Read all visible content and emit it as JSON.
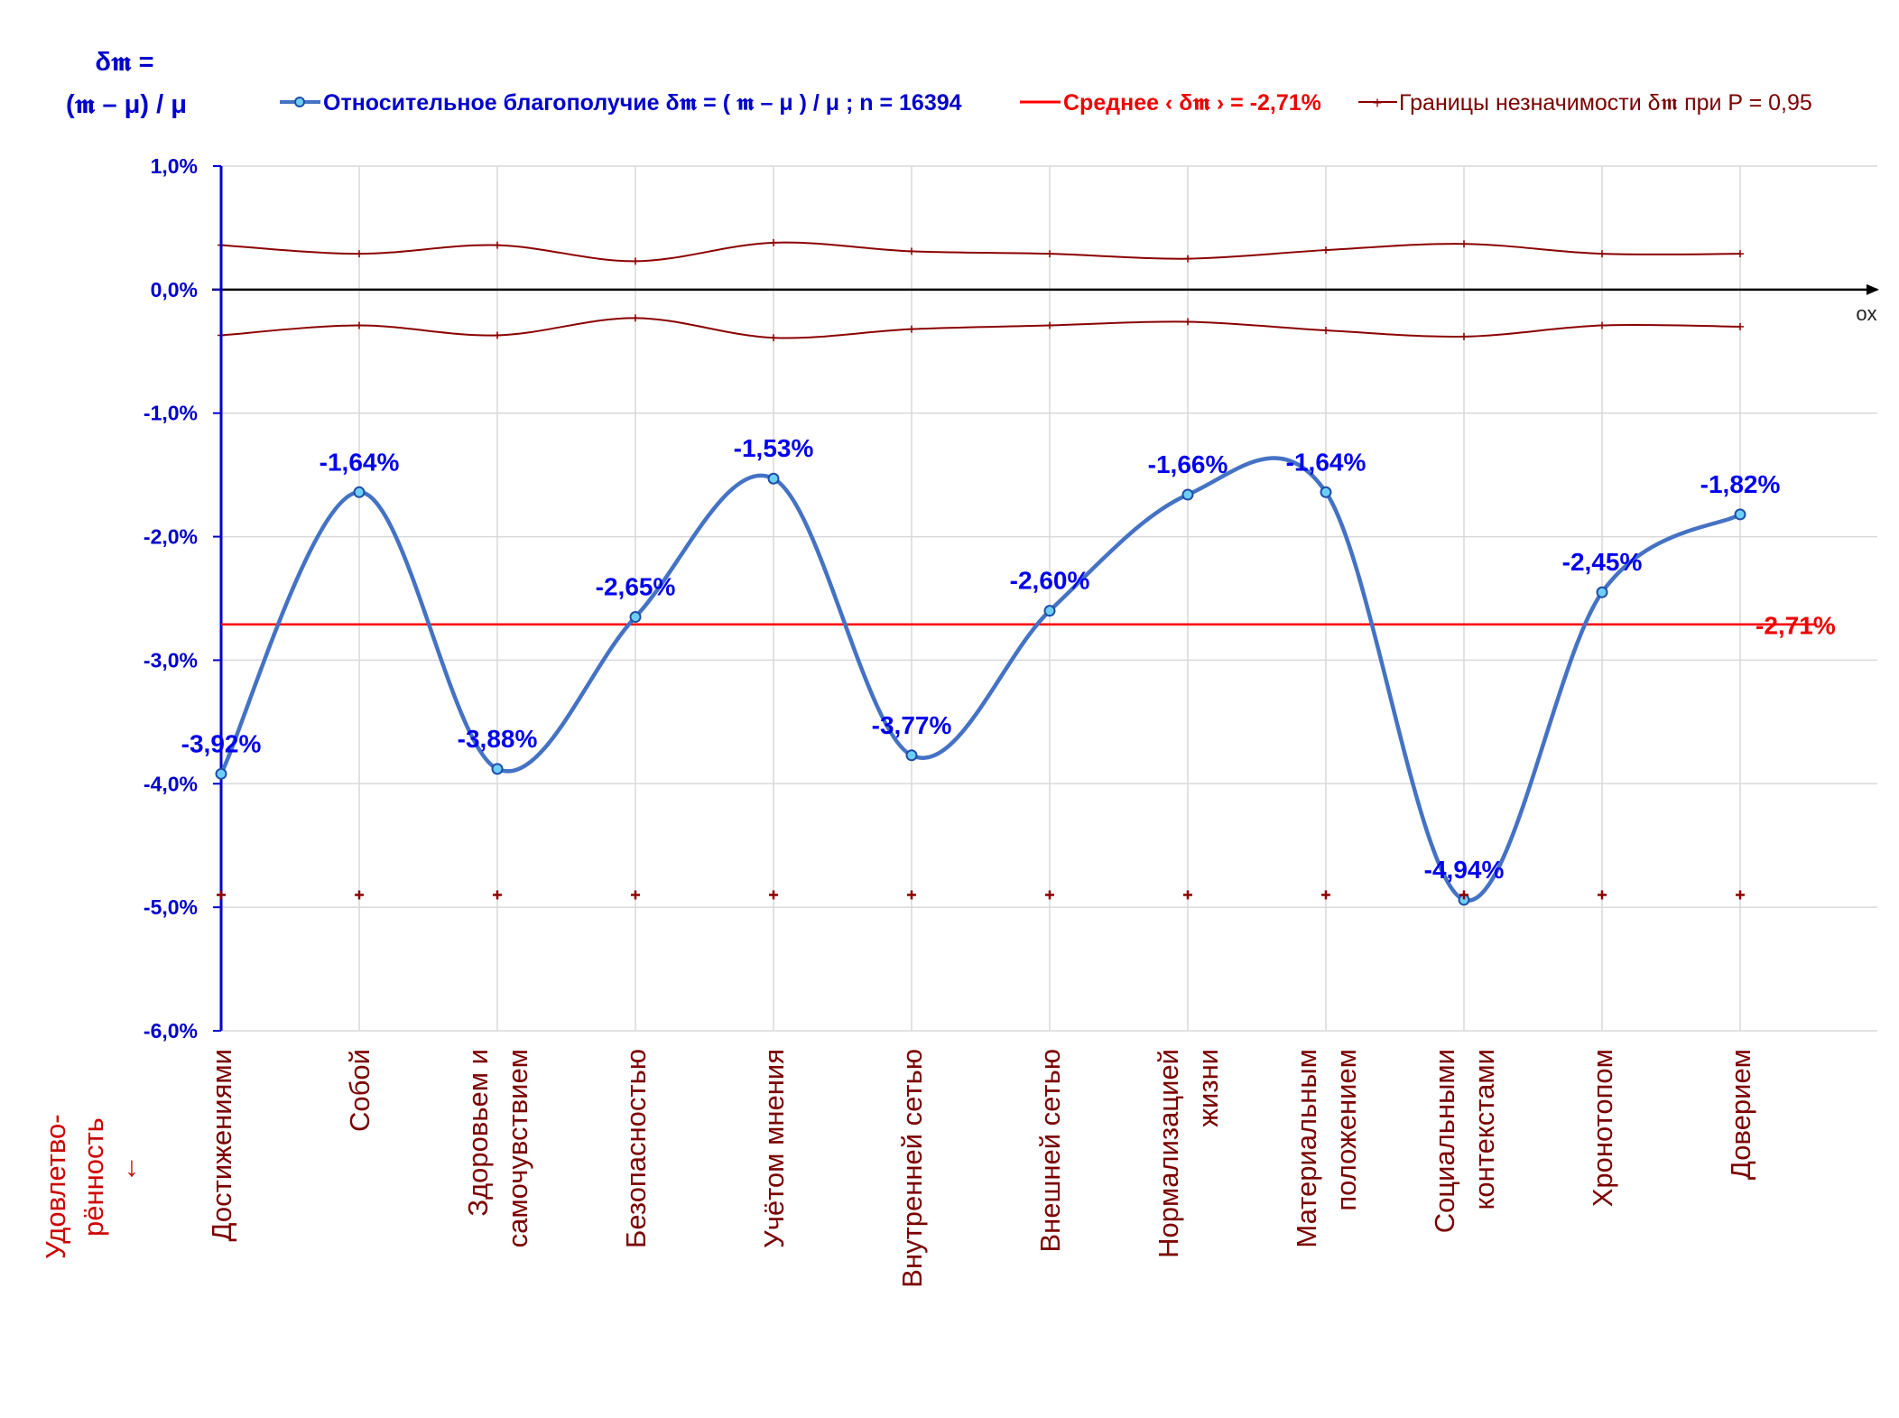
{
  "chart_data": {
    "type": "line",
    "y_title_line1": "δ𝖒 =",
    "y_title_line2": "(𝖒 – μ) / μ",
    "x_axis_name": "ox",
    "corner_label_line1": "Удовлетво-",
    "corner_label_line2": "рённость",
    "corner_label_line3": "↓",
    "legend": {
      "series": "Относительное благополучие δ𝖒 = ( 𝖒 – μ ) / μ ; n = 16394",
      "mean": "Среднее ‹ δ𝖒 › = -2,71%",
      "bounds": "Границы незначимости δ𝖒 при P = 0,95"
    },
    "ylim": [
      -6.0,
      1.0
    ],
    "y_ticks": [
      1.0,
      0.0,
      -1.0,
      -2.0,
      -3.0,
      -4.0,
      -5.0,
      -6.0
    ],
    "y_tick_labels": [
      "1,0%",
      "0,0%",
      "-1,0%",
      "-2,0%",
      "-3,0%",
      "-4,0%",
      "-5,0%",
      "-6,0%"
    ],
    "categories": [
      [
        "Достижениями"
      ],
      [
        "Собой"
      ],
      [
        "Здоровьем и",
        "самочувствием"
      ],
      [
        "Безопасностью"
      ],
      [
        "Учётом мнения"
      ],
      [
        "Внутренней сетью"
      ],
      [
        "Внешней сетью"
      ],
      [
        "Нормализацией",
        "жизни"
      ],
      [
        "Материальным",
        "положением"
      ],
      [
        "Социальными",
        "контекстами"
      ],
      [
        "Хронотопом"
      ],
      [
        "Доверием"
      ]
    ],
    "series": [
      {
        "name": "Относительное благополучие δ𝖒 = ( 𝖒 – μ ) / μ ; n = 16394",
        "values": [
          -3.92,
          -1.64,
          -3.88,
          -2.65,
          -1.53,
          -3.77,
          -2.6,
          -1.66,
          -1.64,
          -4.94,
          -2.45,
          -1.82
        ],
        "labels": [
          "-3,92%",
          "-1,64%",
          "-3,88%",
          "-2,65%",
          "-1,53%",
          "-3,77%",
          "-2,60%",
          "-1,66%",
          "-1,64%",
          "-4,94%",
          "-2,45%",
          "-1,82%"
        ],
        "color": "#4472c4"
      }
    ],
    "mean": {
      "value": -2.71,
      "label": "-2,71%",
      "color": "#ff0000"
    },
    "bounds_upper": [
      0.36,
      0.29,
      0.36,
      0.23,
      0.38,
      0.31,
      0.29,
      0.25,
      0.32,
      0.37,
      0.29,
      0.29
    ],
    "bounds_lower": [
      -0.37,
      -0.29,
      -0.37,
      -0.23,
      -0.39,
      -0.32,
      -0.29,
      -0.26,
      -0.33,
      -0.38,
      -0.29,
      -0.3
    ],
    "bounds_color": "#8b0000",
    "marker_row_value": -4.9,
    "grid": true
  }
}
